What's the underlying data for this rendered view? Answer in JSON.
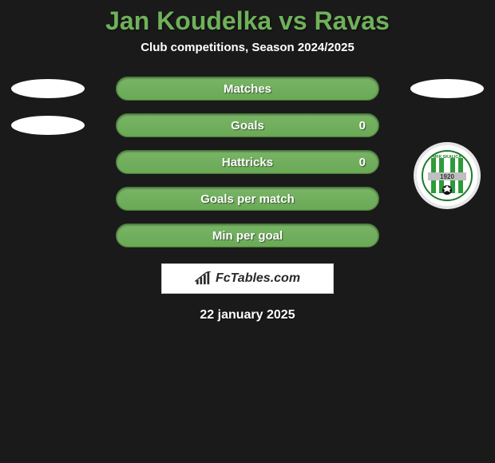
{
  "title": "Jan Koudelka vs Ravas",
  "subtitle": "Club competitions, Season 2024/2025",
  "date": "22 january 2025",
  "watermark": {
    "text": "FcTables.com"
  },
  "colors": {
    "accent_green": "#6fb15a",
    "bar_top": "#78b566",
    "bar_bottom": "#6aa956",
    "bar_border": "#4a7a3a",
    "background": "#1a1a1a",
    "text": "#ffffff"
  },
  "stats": [
    {
      "label": "Matches",
      "right_value": "",
      "show_left_badge": true,
      "show_right_badge": true
    },
    {
      "label": "Goals",
      "right_value": "0",
      "show_left_badge": true,
      "show_right_badge": false
    },
    {
      "label": "Hattricks",
      "right_value": "0",
      "show_left_badge": false,
      "show_right_badge": false
    },
    {
      "label": "Goals per match",
      "right_value": "",
      "show_left_badge": false,
      "show_right_badge": false
    },
    {
      "label": "Min per goal",
      "right_value": "",
      "show_left_badge": false,
      "show_right_badge": false
    }
  ],
  "club_logo": {
    "name": "MFK Skalica",
    "year": "1920",
    "stripe_color": "#2e9b3a",
    "band_color": "#bfbfbf"
  }
}
